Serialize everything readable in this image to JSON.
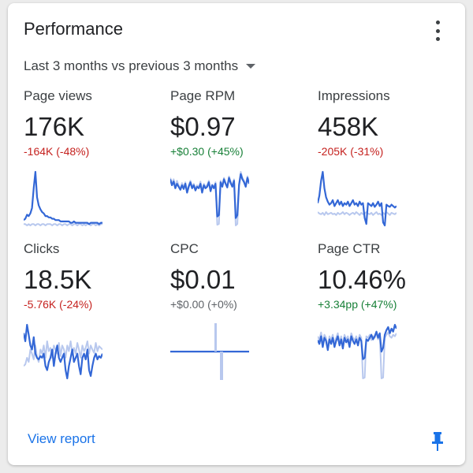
{
  "card": {
    "title": "Performance",
    "period_label": "Last 3 months vs previous 3 months",
    "view_report_label": "View report"
  },
  "colors": {
    "current": "#3367d6",
    "previous": "#b8c8ee",
    "negative": "#c5221f",
    "positive": "#188038",
    "neutral": "#5f6368",
    "link": "#1a73e8"
  },
  "icons": {
    "menu": "more-vert-icon",
    "pin": "pin-icon",
    "dropdown": "caret-down-icon"
  },
  "metrics": [
    {
      "label": "Page views",
      "value": "176K",
      "change": "-164K (-48%)",
      "trend": "negative"
    },
    {
      "label": "Page RPM",
      "value": "$0.97",
      "change": "+$0.30 (+45%)",
      "trend": "positive"
    },
    {
      "label": "Impressions",
      "value": "458K",
      "change": "-205K (-31%)",
      "trend": "negative"
    },
    {
      "label": "Clicks",
      "value": "18.5K",
      "change": "-5.76K (-24%)",
      "trend": "negative"
    },
    {
      "label": "CPC",
      "value": "$0.01",
      "change": "+$0.00 (+0%)",
      "trend": "neutral"
    },
    {
      "label": "Page CTR",
      "value": "10.46%",
      "change": "+3.34pp (+47%)",
      "trend": "positive"
    }
  ],
  "chart_data": [
    {
      "type": "line",
      "series": [
        {
          "values": [
            6,
            6,
            5,
            6,
            5,
            6,
            6,
            5,
            6,
            6,
            5,
            6,
            6,
            5,
            6,
            6,
            6,
            5,
            6,
            6,
            5,
            6,
            6,
            5,
            6,
            6,
            5,
            6,
            6,
            5,
            6,
            6,
            5,
            6,
            6,
            5,
            6,
            5,
            6,
            6,
            5,
            6,
            6,
            5,
            6,
            5,
            6,
            6
          ]
        },
        {
          "values": [
            9,
            10,
            13,
            12,
            14,
            18,
            33,
            45,
            26,
            20,
            17,
            15,
            14,
            12,
            12,
            11,
            11,
            10,
            10,
            9,
            9,
            9,
            8,
            8,
            8,
            8,
            8,
            8,
            7,
            7,
            8,
            7,
            7,
            7,
            7,
            7,
            7,
            7,
            7,
            6,
            7,
            7,
            7,
            7,
            7,
            6,
            7,
            7
          ]
        }
      ]
    },
    {
      "type": "line",
      "series": [
        {
          "values": [
            70,
            62,
            68,
            58,
            66,
            60,
            55,
            63,
            57,
            64,
            52,
            60,
            66,
            58,
            62,
            55,
            60,
            57,
            65,
            52,
            62,
            58,
            60,
            66,
            54,
            61,
            57,
            64,
            7,
            8,
            66,
            60,
            70,
            63,
            58,
            72,
            65,
            60,
            68,
            6,
            8,
            62,
            78,
            70,
            66,
            60,
            72,
            64
          ]
        },
        {
          "values": [
            68,
            60,
            65,
            56,
            62,
            58,
            54,
            60,
            55,
            62,
            50,
            58,
            64,
            56,
            60,
            53,
            58,
            56,
            62,
            50,
            60,
            56,
            58,
            64,
            52,
            60,
            56,
            62,
            18,
            20,
            64,
            58,
            68,
            62,
            57,
            70,
            63,
            58,
            66,
            16,
            20,
            60,
            75,
            68,
            64,
            58,
            70,
            62
          ]
        }
      ]
    },
    {
      "type": "line",
      "series": [
        {
          "values": [
            28,
            26,
            25,
            27,
            24,
            28,
            25,
            26,
            27,
            25,
            26,
            24,
            27,
            25,
            26,
            28,
            25,
            27,
            26,
            24,
            26,
            27,
            25,
            28,
            26,
            24,
            27,
            25,
            26,
            28,
            26,
            25,
            27,
            24,
            26,
            28,
            25,
            26,
            24,
            27,
            25,
            28,
            26,
            24,
            27,
            26,
            25,
            27
          ]
        },
        {
          "values": [
            40,
            50,
            70,
            82,
            60,
            48,
            42,
            38,
            40,
            44,
            36,
            40,
            44,
            38,
            42,
            36,
            40,
            38,
            42,
            36,
            40,
            44,
            38,
            40,
            36,
            42,
            38,
            40,
            20,
            12,
            40,
            38,
            36,
            40,
            35,
            38,
            42,
            36,
            40,
            14,
            10,
            38,
            36,
            35,
            38,
            36,
            34,
            36
          ]
        }
      ]
    },
    {
      "type": "line",
      "series": [
        {
          "values": [
            20,
            22,
            30,
            25,
            40,
            35,
            28,
            45,
            30,
            25,
            40,
            35,
            45,
            30,
            50,
            38,
            42,
            30,
            45,
            40,
            35,
            48,
            32,
            45,
            40,
            30,
            45,
            38,
            50,
            36,
            42,
            35,
            48,
            40,
            30,
            45,
            38,
            42,
            50,
            35,
            45,
            40,
            36,
            48,
            38,
            44,
            42,
            40
          ]
        },
        {
          "values": [
            60,
            50,
            70,
            58,
            45,
            40,
            55,
            35,
            30,
            28,
            32,
            30,
            35,
            20,
            15,
            25,
            30,
            40,
            20,
            35,
            45,
            30,
            25,
            30,
            35,
            15,
            5,
            20,
            30,
            40,
            25,
            30,
            35,
            20,
            10,
            30,
            35,
            28,
            40,
            15,
            8,
            20,
            30,
            35,
            28,
            32,
            30,
            35
          ]
        }
      ]
    },
    {
      "type": "line",
      "series": [
        {
          "values": [
            0,
            0,
            0,
            0,
            0,
            0,
            0,
            0,
            0,
            0,
            0,
            0,
            0,
            0,
            0,
            0,
            0,
            0,
            0,
            0,
            0,
            0,
            0,
            0,
            0,
            0,
            0,
            0,
            0,
            0,
            0,
            0,
            0,
            0,
            0,
            0,
            0,
            0,
            0,
            0,
            0,
            0,
            0,
            0,
            0,
            0,
            0,
            0
          ]
        },
        {
          "values": [
            0,
            0,
            0,
            0,
            0,
            0,
            0,
            0,
            0,
            0,
            0,
            0,
            0,
            0,
            0,
            0,
            0,
            0,
            0,
            0,
            0,
            0,
            0,
            0,
            0,
            0,
            0,
            0,
            0,
            0,
            0,
            0,
            0,
            0,
            0,
            0,
            0,
            0,
            0,
            0,
            0,
            0,
            0,
            0,
            0,
            0,
            0,
            0
          ]
        }
      ],
      "spikes": {
        "previous_up": 1,
        "current_down": -1
      }
    },
    {
      "type": "line",
      "series": [
        {
          "values": [
            60,
            55,
            65,
            50,
            62,
            58,
            45,
            60,
            55,
            62,
            50,
            58,
            64,
            52,
            60,
            48,
            62,
            56,
            60,
            50,
            64,
            58,
            55,
            60,
            52,
            62,
            58,
            5,
            6,
            60,
            58,
            62,
            55,
            60,
            58,
            64,
            56,
            62,
            5,
            6,
            58,
            62,
            65,
            60,
            58,
            62,
            60,
            64
          ]
        },
        {
          "values": [
            55,
            50,
            60,
            46,
            58,
            54,
            42,
            56,
            50,
            58,
            46,
            54,
            60,
            48,
            56,
            44,
            58,
            52,
            56,
            46,
            60,
            54,
            50,
            56,
            48,
            58,
            54,
            30,
            32,
            56,
            54,
            58,
            62,
            56,
            60,
            66,
            58,
            64,
            40,
            45,
            62,
            68,
            72,
            64,
            70,
            66,
            75,
            70
          ]
        }
      ]
    }
  ]
}
